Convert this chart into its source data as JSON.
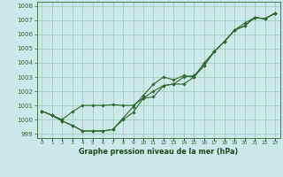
{
  "x": [
    0,
    1,
    2,
    3,
    4,
    5,
    6,
    7,
    8,
    9,
    10,
    11,
    12,
    13,
    14,
    15,
    16,
    17,
    18,
    19,
    20,
    21,
    22,
    23
  ],
  "line1": [
    1000.6,
    1000.3,
    999.9,
    999.6,
    999.2,
    999.2,
    999.2,
    999.3,
    1000.0,
    1000.5,
    1001.5,
    1001.6,
    1002.4,
    1002.5,
    1002.5,
    1003.0,
    1003.8,
    1004.8,
    1005.5,
    1006.3,
    1006.6,
    1007.2,
    1007.1,
    1007.5
  ],
  "line2": [
    1000.6,
    1000.3,
    999.9,
    999.6,
    999.2,
    999.2,
    999.2,
    999.3,
    1000.1,
    1000.9,
    1001.7,
    1002.5,
    1003.0,
    1002.8,
    1003.1,
    1003.0,
    1004.0,
    1004.8,
    1005.5,
    1006.3,
    1006.8,
    1007.2,
    1007.1,
    1007.5
  ],
  "line3": [
    1000.6,
    1000.3,
    1000.0,
    1000.55,
    1001.0,
    1001.0,
    1001.0,
    1001.05,
    1001.0,
    1001.0,
    1001.5,
    1002.0,
    1002.4,
    1002.5,
    1003.0,
    1003.1,
    1003.8,
    1004.8,
    1005.5,
    1006.3,
    1006.6,
    1007.2,
    1007.1,
    1007.5
  ],
  "bg_color": "#cce8e8",
  "line_color": "#2d6a2d",
  "grid_color": "#9ec8b8",
  "xlabel": "Graphe pression niveau de la mer (hPa)",
  "ylim": [
    998.7,
    1008.3
  ],
  "yticks": [
    999,
    1000,
    1001,
    1002,
    1003,
    1004,
    1005,
    1006,
    1007,
    1008
  ],
  "xlabel_color": "#1a4a1a",
  "figsize": [
    3.2,
    2.0
  ],
  "dpi": 100
}
